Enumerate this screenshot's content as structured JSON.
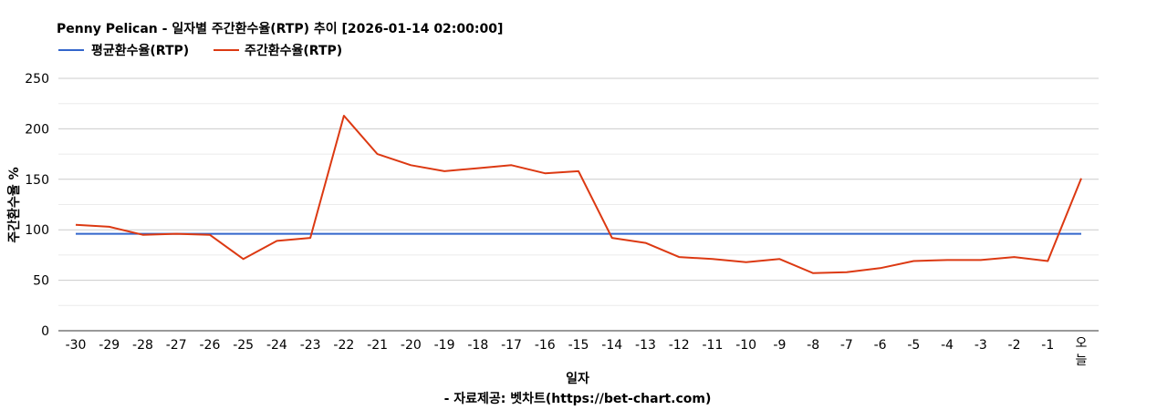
{
  "chart_data": {
    "type": "line",
    "title": "Penny Pelican - 일자별 주간환수율(RTP) 추이 [2026-01-14 02:00:00]",
    "xlabel": "일자",
    "ylabel": "주간환수율 %",
    "source": "- 자료제공: 벳차트(https://bet-chart.com)",
    "categories": [
      "-30",
      "-29",
      "-28",
      "-27",
      "-26",
      "-25",
      "-24",
      "-23",
      "-22",
      "-21",
      "-20",
      "-19",
      "-18",
      "-17",
      "-16",
      "-15",
      "-14",
      "-13",
      "-12",
      "-11",
      "-10",
      "-9",
      "-8",
      "-7",
      "-6",
      "-5",
      "-4",
      "-3",
      "-2",
      "-1",
      "오늘"
    ],
    "ylim": [
      0,
      250
    ],
    "yticks": [
      0,
      50,
      100,
      150,
      200,
      250
    ],
    "grid": true,
    "legend_position": "top-left",
    "series": [
      {
        "name": "평균환수율(RTP)",
        "color": "#3366cc",
        "values": [
          96,
          96,
          96,
          96,
          96,
          96,
          96,
          96,
          96,
          96,
          96,
          96,
          96,
          96,
          96,
          96,
          96,
          96,
          96,
          96,
          96,
          96,
          96,
          96,
          96,
          96,
          96,
          96,
          96,
          96,
          96
        ]
      },
      {
        "name": "주간환수율(RTP)",
        "color": "#dc3912",
        "values": [
          105,
          103,
          95,
          96,
          95,
          71,
          89,
          92,
          213,
          175,
          164,
          158,
          161,
          164,
          156,
          158,
          92,
          87,
          73,
          71,
          68,
          71,
          57,
          58,
          62,
          69,
          70,
          70,
          73,
          69,
          151
        ]
      }
    ]
  }
}
